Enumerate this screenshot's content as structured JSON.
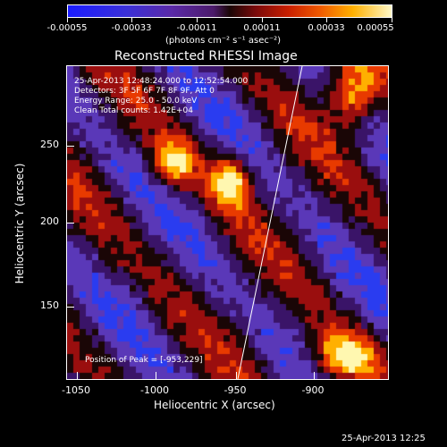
{
  "colorbar": {
    "tick_labels": [
      "-0.00055",
      "-0.00033",
      "-0.00011",
      "0.00011",
      "0.00033",
      "0.00055"
    ],
    "unit_label": "(photons cm⁻² s⁻¹ asec⁻²)"
  },
  "plot": {
    "title": "Reconstructed RHESSI Image",
    "info_lines": [
      "25-Apr-2013 12:48:24.000 to 12:52:54.000",
      "Detectors: 3F 5F 6F 7F 8F 9F, Att 0",
      "Energy Range: 25.0 - 50.0 keV",
      "Clean    Total counts: 1.42E+04"
    ],
    "peak_label": "Position of Peak = [-953,229]",
    "xlabel": "Heliocentric X (arcsec)",
    "ylabel": "Heliocentric Y (arcsec)",
    "x_ticks": [
      "-1050",
      "-1000",
      "-950",
      "-900"
    ],
    "y_ticks": [
      "250",
      "200",
      "150"
    ],
    "xlim": [
      -1055,
      -865
    ],
    "ylim": [
      103,
      288
    ],
    "limb_line": true
  },
  "footer": {
    "timestamp": "25-Apr-2013 12:25"
  },
  "colors": {
    "bright": "#fff7b0",
    "high": "#ffb000",
    "mid_pos": "#e83a00",
    "low_pos": "#9a0e0e",
    "zero": "#1a0606",
    "low_neg": "#3a1468",
    "mid_neg": "#5a38b8",
    "high_neg": "#2a3cf0"
  }
}
